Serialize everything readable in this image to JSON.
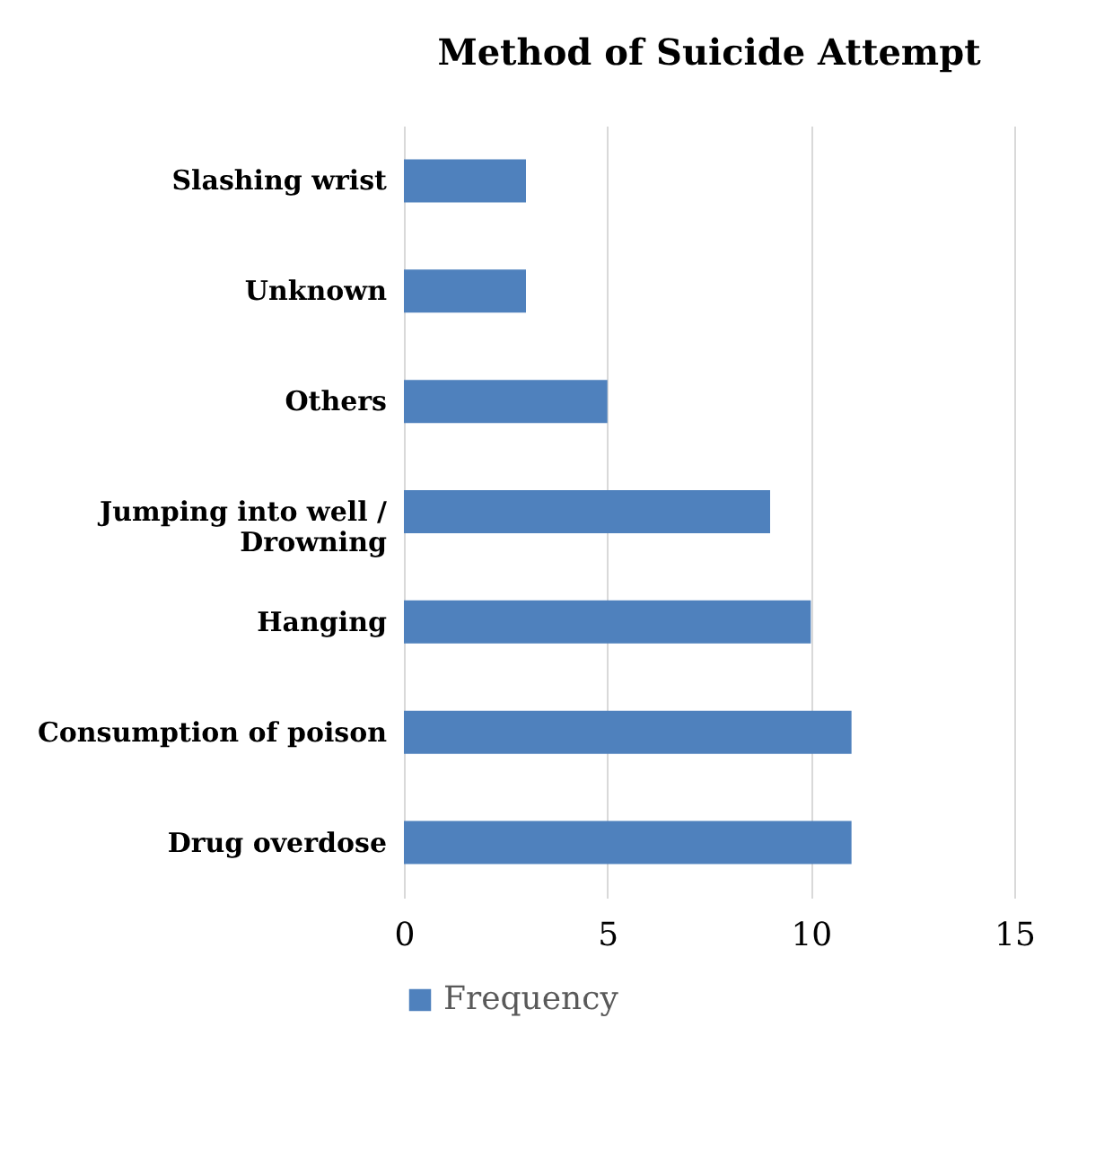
{
  "chart_data": {
    "type": "bar",
    "orientation": "horizontal",
    "title": "Method of Suicide Attempt",
    "categories": [
      "Slashing wrist",
      "Unknown",
      "Others",
      "Jumping into well / Drowning",
      "Hanging",
      "Consumption of poison",
      "Drug overdose"
    ],
    "series": [
      {
        "name": "Frequency",
        "color": "#4f81bd",
        "values": [
          3,
          3,
          5,
          9,
          10,
          11,
          11
        ]
      }
    ],
    "xlim": [
      0,
      15
    ],
    "xticks": [
      0,
      5,
      10,
      15
    ],
    "grid": "x",
    "legend": "bottom"
  }
}
